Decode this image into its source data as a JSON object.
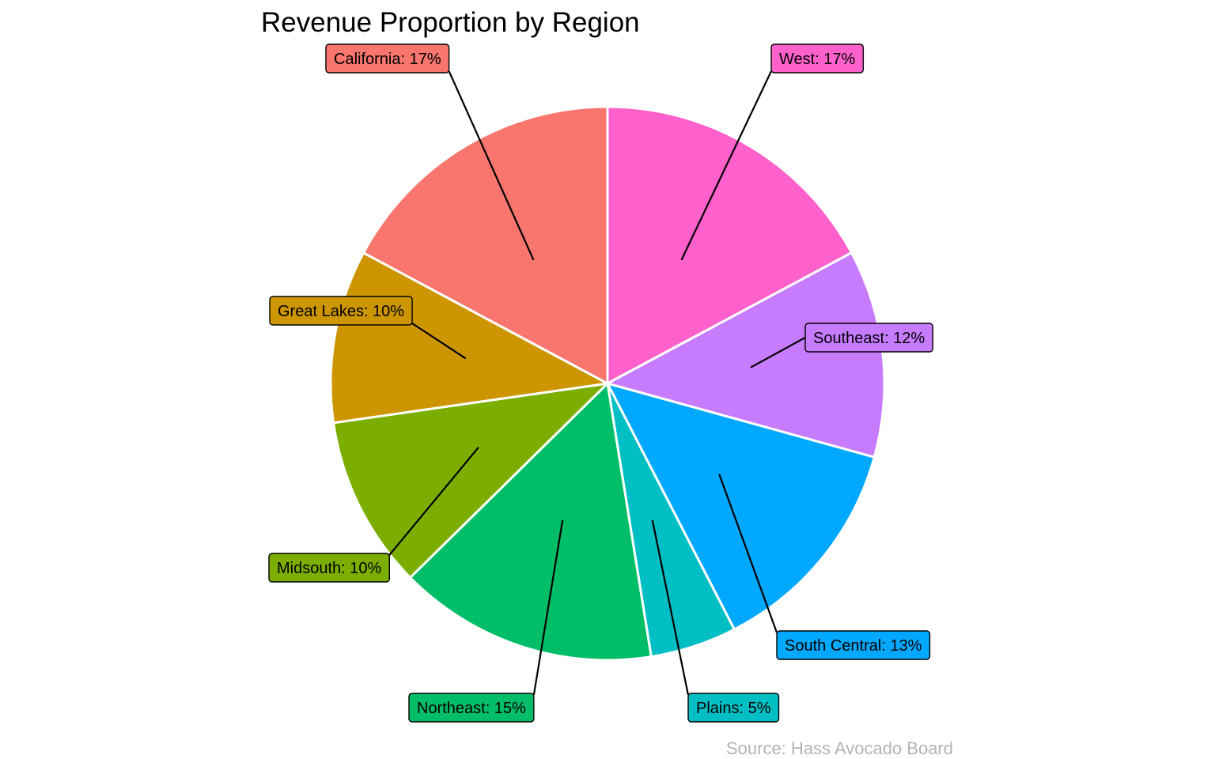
{
  "chart_data": {
    "type": "pie",
    "title": "Revenue Proportion by Region",
    "caption": "Source: Hass Avocado Board",
    "slices": [
      {
        "name": "West",
        "value": 17,
        "label": "West: 17%",
        "color": "#FF61CC"
      },
      {
        "name": "Southeast",
        "value": 12,
        "label": "Southeast: 12%",
        "color": "#C77CFF"
      },
      {
        "name": "South Central",
        "value": 13,
        "label": "South Central: 13%",
        "color": "#00A9FF"
      },
      {
        "name": "Plains",
        "value": 5,
        "label": "Plains: 5%",
        "color": "#00BFC4"
      },
      {
        "name": "Northeast",
        "value": 15,
        "label": "Northeast: 15%",
        "color": "#00BE67"
      },
      {
        "name": "Midsouth",
        "value": 10,
        "label": "Midsouth: 10%",
        "color": "#7CAE00"
      },
      {
        "name": "Great Lakes",
        "value": 10,
        "label": "Great Lakes: 10%",
        "color": "#CD9600"
      },
      {
        "name": "California",
        "value": 17,
        "label": "California: 17%",
        "color": "#F8766D"
      }
    ],
    "direction": "clockwise",
    "start": "top",
    "legend": "none"
  }
}
